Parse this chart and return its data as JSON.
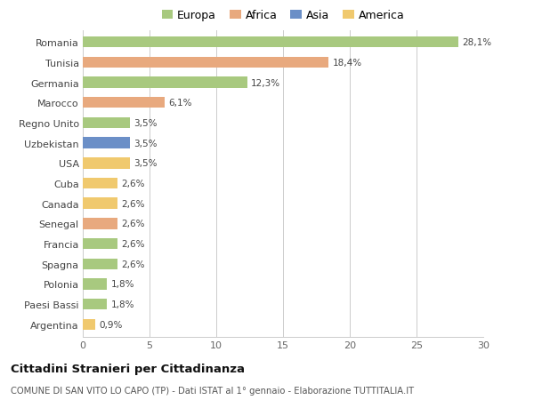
{
  "countries": [
    "Romania",
    "Tunisia",
    "Germania",
    "Marocco",
    "Regno Unito",
    "Uzbekistan",
    "USA",
    "Cuba",
    "Canada",
    "Senegal",
    "Francia",
    "Spagna",
    "Polonia",
    "Paesi Bassi",
    "Argentina"
  ],
  "values": [
    28.1,
    18.4,
    12.3,
    6.1,
    3.5,
    3.5,
    3.5,
    2.6,
    2.6,
    2.6,
    2.6,
    2.6,
    1.8,
    1.8,
    0.9
  ],
  "labels": [
    "28,1%",
    "18,4%",
    "12,3%",
    "6,1%",
    "3,5%",
    "3,5%",
    "3,5%",
    "2,6%",
    "2,6%",
    "2,6%",
    "2,6%",
    "2,6%",
    "1,8%",
    "1,8%",
    "0,9%"
  ],
  "continents": [
    "Europa",
    "Africa",
    "Europa",
    "Africa",
    "Europa",
    "Asia",
    "America",
    "America",
    "America",
    "Africa",
    "Europa",
    "Europa",
    "Europa",
    "Europa",
    "America"
  ],
  "colors": {
    "Europa": "#a8c97f",
    "Africa": "#e8a97e",
    "Asia": "#6b8fc7",
    "America": "#f0c96e"
  },
  "legend_order": [
    "Europa",
    "Africa",
    "Asia",
    "America"
  ],
  "title": "Cittadini Stranieri per Cittadinanza",
  "subtitle": "COMUNE DI SAN VITO LO CAPO (TP) - Dati ISTAT al 1° gennaio - Elaborazione TUTTITALIA.IT",
  "xlim": [
    0,
    30
  ],
  "xticks": [
    0,
    5,
    10,
    15,
    20,
    25,
    30
  ],
  "background_color": "#ffffff",
  "grid_color": "#cccccc",
  "bar_height": 0.55
}
